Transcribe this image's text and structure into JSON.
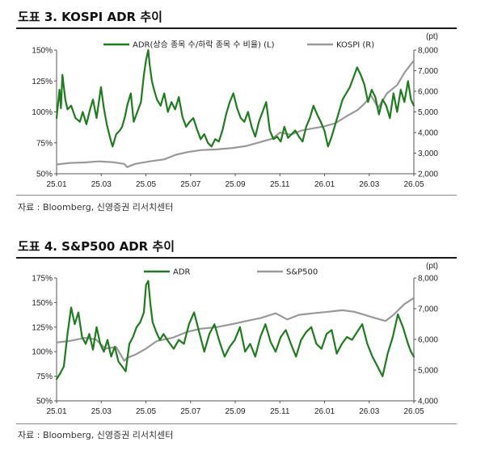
{
  "figures": [
    {
      "title": "도표 3. KOSPI ADR 추이",
      "source": "자료 : Bloomberg, 신영증권 리서치센터",
      "chart_data": {
        "type": "line",
        "xlim": [
          "2025-01-02",
          "2026-05-08"
        ],
        "x_ticks": [
          "25.01",
          "25.03",
          "25.05",
          "25.07",
          "25.09",
          "25.11",
          "26.01",
          "26.03",
          "26.05"
        ],
        "y_left": {
          "ticks": [
            "50%",
            "75%",
            "100%",
            "125%",
            "150%"
          ],
          "range": [
            50,
            150
          ],
          "unit": "%"
        },
        "y_right": {
          "ticks": [
            "2,000",
            "3,000",
            "4,000",
            "5,000",
            "6,000",
            "7,000",
            "8,000"
          ],
          "range": [
            2000,
            8000
          ],
          "unit": "(pt)"
        },
        "series": [
          {
            "name": "ADR(상승 종목 수/하락 종목 수 비율) (L)",
            "axis": "left",
            "color": "#1e7b1e",
            "x": [
              "2025-01-02",
              "2025-01-06",
              "2025-01-08",
              "2025-01-10",
              "2025-01-14",
              "2025-01-17",
              "2025-01-22",
              "2025-01-28",
              "2025-02-03",
              "2025-02-07",
              "2025-02-12",
              "2025-02-17",
              "2025-02-21",
              "2025-02-26",
              "2025-03-04",
              "2025-03-08",
              "2025-03-12",
              "2025-03-17",
              "2025-03-20",
              "2025-03-25",
              "2025-03-30",
              "2025-04-02",
              "2025-04-06",
              "2025-04-09",
              "2025-04-14",
              "2025-04-18",
              "2025-04-23",
              "2025-04-28",
              "2025-05-02",
              "2025-05-05",
              "2025-05-08",
              "2025-05-10",
              "2025-05-13",
              "2025-05-16",
              "2025-05-20",
              "2025-05-25",
              "2025-05-30",
              "2025-06-04",
              "2025-06-09",
              "2025-06-14",
              "2025-06-19",
              "2025-06-24",
              "2025-06-29",
              "2025-07-04",
              "2025-07-09",
              "2025-07-14",
              "2025-07-19",
              "2025-07-24",
              "2025-07-29",
              "2025-08-03",
              "2025-08-08",
              "2025-08-13",
              "2025-08-18",
              "2025-08-23",
              "2025-08-28",
              "2025-09-02",
              "2025-09-07",
              "2025-09-12",
              "2025-09-17",
              "2025-09-22",
              "2025-09-27",
              "2025-10-02",
              "2025-10-07",
              "2025-10-12",
              "2025-10-17",
              "2025-10-22",
              "2025-10-27",
              "2025-11-01",
              "2025-11-06",
              "2025-11-11",
              "2025-11-16",
              "2025-11-21",
              "2025-11-26",
              "2025-12-01",
              "2025-12-06",
              "2025-12-11",
              "2025-12-16",
              "2025-12-21",
              "2025-12-26",
              "2025-12-31",
              "2026-01-05",
              "2026-01-10",
              "2026-01-15",
              "2026-01-20",
              "2026-01-25",
              "2026-01-30",
              "2026-02-04",
              "2026-02-09",
              "2026-02-14",
              "2026-02-19",
              "2026-02-24",
              "2026-03-01",
              "2026-03-06",
              "2026-03-11",
              "2026-03-16",
              "2026-03-21",
              "2026-03-26",
              "2026-03-31",
              "2026-04-05",
              "2026-04-10",
              "2026-04-15",
              "2026-04-20",
              "2026-04-25",
              "2026-04-30",
              "2026-05-04",
              "2026-05-08"
            ],
            "y": [
              95,
              118,
              103,
              130,
              110,
              102,
              105,
              95,
              92,
              100,
              90,
              102,
              110,
              95,
              120,
              103,
              90,
              78,
              72,
              82,
              85,
              88,
              96,
              105,
              115,
              92,
              100,
              108,
              130,
              142,
              150,
              138,
              125,
              118,
              110,
              105,
              115,
              100,
              108,
              102,
              112,
              96,
              88,
              92,
              95,
              86,
              78,
              82,
              75,
              72,
              78,
              76,
              85,
              98,
              108,
              115,
              103,
              95,
              92,
              100,
              88,
              80,
              92,
              100,
              108,
              85,
              78,
              80,
              76,
              88,
              79,
              82,
              85,
              80,
              76,
              88,
              95,
              105,
              98,
              92,
              85,
              72,
              80,
              90,
              100,
              110,
              115,
              120,
              128,
              136,
              130,
              122,
              108,
              118,
              112,
              98,
              110,
              105,
              95,
              115,
              100,
              118,
              108,
              125,
              110,
              105
            ]
          },
          {
            "name": "KOSPI (R)",
            "axis": "right",
            "color": "#999999",
            "x": [
              "2025-01-02",
              "2025-01-20",
              "2025-02-10",
              "2025-03-01",
              "2025-03-20",
              "2025-04-05",
              "2025-04-09",
              "2025-04-20",
              "2025-05-10",
              "2025-05-30",
              "2025-06-15",
              "2025-07-01",
              "2025-07-20",
              "2025-08-10",
              "2025-09-01",
              "2025-09-20",
              "2025-10-05",
              "2025-10-25",
              "2025-11-05",
              "2025-11-20",
              "2025-12-05",
              "2025-12-20",
              "2026-01-05",
              "2026-01-20",
              "2026-02-05",
              "2026-02-20",
              "2026-03-01",
              "2026-03-10",
              "2026-03-20",
              "2026-04-01",
              "2026-04-15",
              "2026-04-25",
              "2026-05-08"
            ],
            "y": [
              2450,
              2520,
              2550,
              2600,
              2560,
              2480,
              2320,
              2480,
              2600,
              2700,
              2920,
              3050,
              3150,
              3180,
              3250,
              3350,
              3500,
              3700,
              4000,
              3900,
              4100,
              4200,
              4300,
              4450,
              4800,
              5100,
              5400,
              5800,
              5200,
              5900,
              6300,
              6900,
              7500
            ]
          }
        ]
      }
    },
    {
      "title": "도표 4. S&P500 ADR 추이",
      "source": "자료 : Bloomberg, 신영증권 리서치센터",
      "chart_data": {
        "type": "line",
        "xlim": [
          "2025-01-02",
          "2026-05-08"
        ],
        "x_ticks": [
          "25.01",
          "25.03",
          "25.05",
          "25.07",
          "25.09",
          "25.11",
          "26.01",
          "26.03",
          "26.05"
        ],
        "y_left": {
          "ticks": [
            "50%",
            "75%",
            "100%",
            "125%",
            "150%",
            "175%"
          ],
          "range": [
            50,
            175
          ],
          "unit": "%"
        },
        "y_right": {
          "ticks": [
            "4,000",
            "5,000",
            "6,000",
            "7,000",
            "8,000"
          ],
          "range": [
            4000,
            8000
          ],
          "unit": "(pt)"
        },
        "series": [
          {
            "name": "ADR",
            "axis": "left",
            "color": "#1e7b1e",
            "x": [
              "2025-01-02",
              "2025-01-07",
              "2025-01-12",
              "2025-01-17",
              "2025-01-22",
              "2025-01-27",
              "2025-02-01",
              "2025-02-06",
              "2025-02-11",
              "2025-02-16",
              "2025-02-21",
              "2025-02-26",
              "2025-03-03",
              "2025-03-08",
              "2025-03-13",
              "2025-03-18",
              "2025-03-23",
              "2025-03-28",
              "2025-04-02",
              "2025-04-07",
              "2025-04-12",
              "2025-04-17",
              "2025-04-22",
              "2025-04-27",
              "2025-05-02",
              "2025-05-05",
              "2025-05-08",
              "2025-05-11",
              "2025-05-14",
              "2025-05-19",
              "2025-05-24",
              "2025-05-29",
              "2025-06-05",
              "2025-06-12",
              "2025-06-19",
              "2025-06-26",
              "2025-07-03",
              "2025-07-10",
              "2025-07-17",
              "2025-07-24",
              "2025-07-31",
              "2025-08-07",
              "2025-08-14",
              "2025-08-21",
              "2025-08-28",
              "2025-09-04",
              "2025-09-11",
              "2025-09-18",
              "2025-09-25",
              "2025-10-02",
              "2025-10-09",
              "2025-10-16",
              "2025-10-23",
              "2025-10-30",
              "2025-11-06",
              "2025-11-13",
              "2025-11-20",
              "2025-11-27",
              "2025-12-04",
              "2025-12-11",
              "2025-12-18",
              "2025-12-25",
              "2026-01-01",
              "2026-01-08",
              "2026-01-15",
              "2026-01-22",
              "2026-01-29",
              "2026-02-05",
              "2026-02-12",
              "2026-02-19",
              "2026-02-26",
              "2026-03-05",
              "2026-03-12",
              "2026-03-19",
              "2026-03-26",
              "2026-04-02",
              "2026-04-09",
              "2026-04-16",
              "2026-04-23",
              "2026-04-30",
              "2026-05-04",
              "2026-05-08"
            ],
            "y": [
              72,
              78,
              85,
              118,
              145,
              128,
              140,
              115,
              108,
              118,
              102,
              125,
              108,
              100,
              112,
              95,
              105,
              90,
              85,
              80,
              108,
              115,
              125,
              130,
              140,
              168,
              172,
              148,
              130,
              120,
              112,
              118,
              110,
              103,
              112,
              108,
              128,
              140,
              120,
              100,
              118,
              128,
              110,
              95,
              105,
              112,
              125,
              100,
              108,
              95,
              115,
              128,
              110,
              100,
              115,
              122,
              108,
              95,
              112,
              120,
              125,
              108,
              103,
              118,
              122,
              98,
              108,
              115,
              112,
              120,
              128,
              108,
              95,
              85,
              75,
              98,
              115,
              138,
              125,
              108,
              100,
              95
            ]
          },
          {
            "name": "S&P500",
            "axis": "right",
            "color": "#999999",
            "x": [
              "2025-01-02",
              "2025-01-20",
              "2025-02-10",
              "2025-02-25",
              "2025-03-10",
              "2025-03-25",
              "2025-04-05",
              "2025-04-09",
              "2025-04-20",
              "2025-05-05",
              "2025-05-20",
              "2025-06-10",
              "2025-07-01",
              "2025-07-20",
              "2025-08-10",
              "2025-09-01",
              "2025-09-20",
              "2025-10-10",
              "2025-10-30",
              "2025-11-15",
              "2025-12-01",
              "2025-12-20",
              "2026-01-10",
              "2026-01-30",
              "2026-02-15",
              "2026-03-01",
              "2026-03-15",
              "2026-03-30",
              "2026-04-10",
              "2026-04-25",
              "2026-05-08"
            ],
            "y": [
              5900,
              5950,
              6050,
              6000,
              5700,
              5750,
              5300,
              5400,
              5500,
              5700,
              5950,
              6050,
              6250,
              6350,
              6400,
              6500,
              6600,
              6700,
              6850,
              6650,
              6800,
              6850,
              6900,
              6950,
              6900,
              6800,
              6700,
              6600,
              6800,
              7150,
              7350
            ]
          }
        ]
      }
    }
  ]
}
